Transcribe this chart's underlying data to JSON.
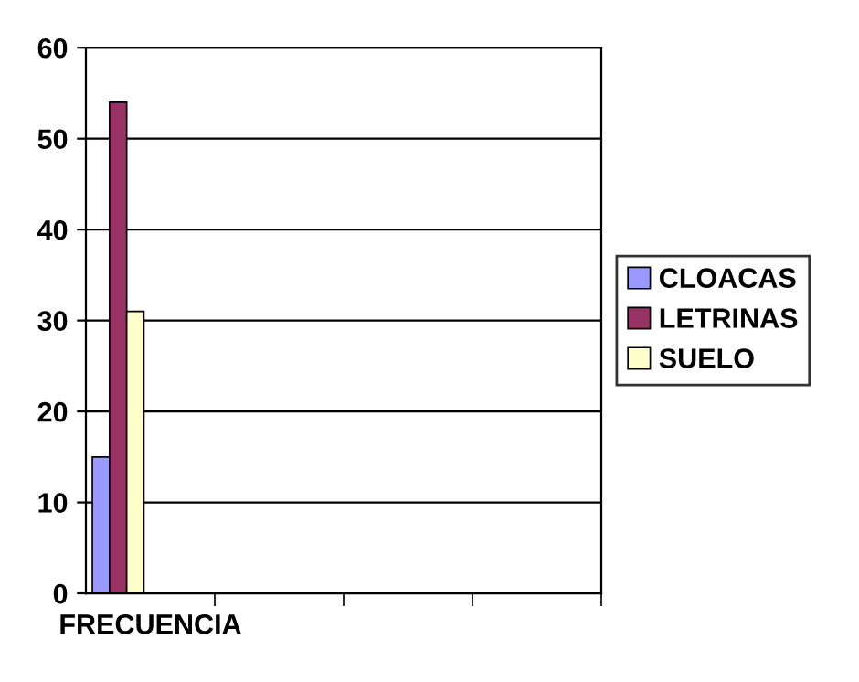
{
  "chart_data": {
    "type": "bar",
    "categories": [
      "FRECUENCIA",
      null,
      null,
      null
    ],
    "series": [
      {
        "name": "CLOACAS",
        "color": "#9999ff",
        "values": [
          15,
          null,
          null,
          null
        ]
      },
      {
        "name": "LETRINAS",
        "color": "#993366",
        "values": [
          54,
          null,
          null,
          null
        ]
      },
      {
        "name": "SUELO",
        "color": "#ffffcc",
        "values": [
          31,
          null,
          null,
          null
        ]
      }
    ],
    "ylim": [
      0,
      60
    ],
    "yticks": [
      0,
      10,
      20,
      30,
      40,
      50,
      60
    ],
    "grid": "y",
    "legend": "right"
  }
}
